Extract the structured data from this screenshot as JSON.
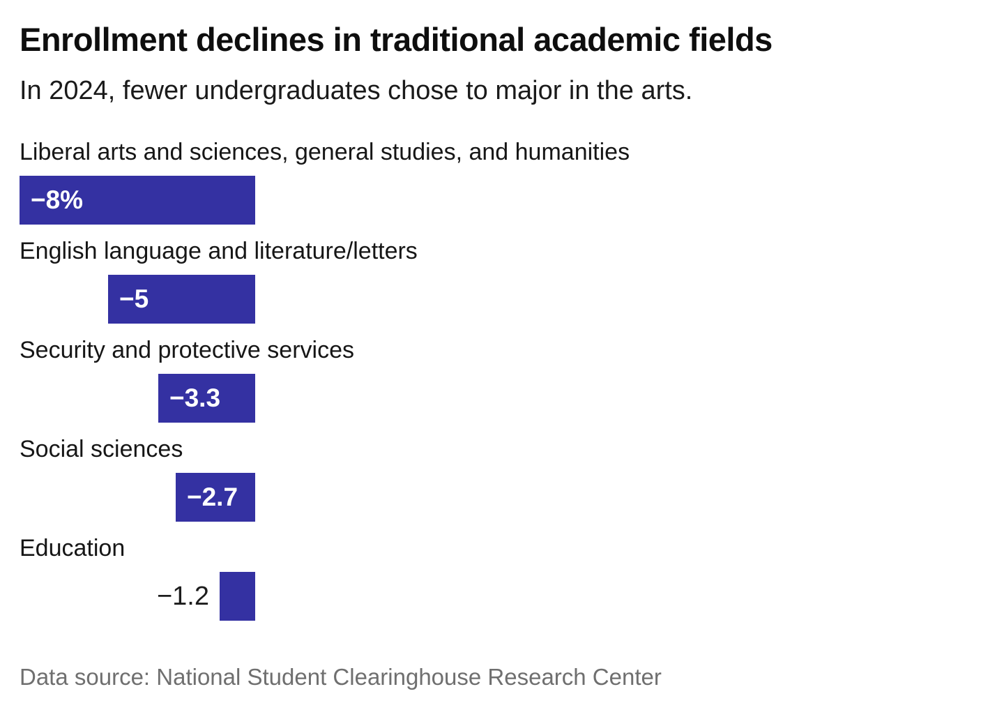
{
  "header": {
    "title": "Enrollment declines in traditional academic fields",
    "subtitle": "In 2024, fewer undergraduates chose to major in the arts."
  },
  "chart_data": {
    "type": "bar",
    "orientation": "horizontal",
    "title": "Enrollment declines in traditional academic fields",
    "subtitle": "In 2024, fewer undergraduates chose to major in the arts.",
    "categories": [
      "Liberal arts and sciences, general studies, and humanities",
      "English language and literature/letters",
      "Security and protective services",
      "Social sciences",
      "Education"
    ],
    "values": [
      -8,
      -5,
      -3.3,
      -2.7,
      -1.2
    ],
    "value_labels": [
      "−8%",
      "−5",
      "−3.3",
      "−2.7",
      "−1.2"
    ],
    "unit": "percent change",
    "xlim": [
      -8,
      0
    ],
    "grid": false,
    "legend": "none",
    "bars_aligned": "right-edge"
  },
  "footer": {
    "source": "Data source: National Student Clearinghouse Research Center"
  },
  "colors": {
    "bar": "#3431a2",
    "value_inside": "#ffffff",
    "value_outside": "#1c1c1c",
    "heading": "#0e0e0e",
    "body_text": "#161616",
    "source_text": "#6f6f6f",
    "background": "#ffffff"
  }
}
